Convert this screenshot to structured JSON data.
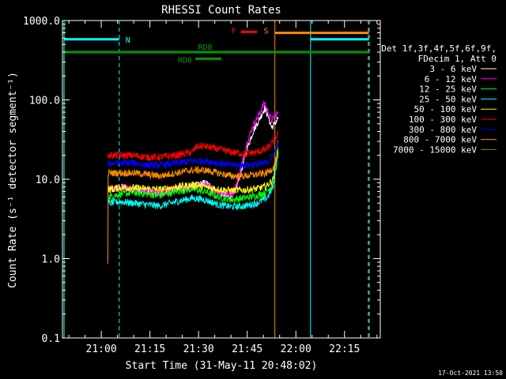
{
  "chart_data": {
    "type": "line",
    "title": "RHESSI Count Rates",
    "xlabel": "Start Time (31-May-11 20:48:02)",
    "ylabel": "Count Rate (s⁻¹ detector segment⁻¹)",
    "ylog": true,
    "ylim": [
      0.1,
      1000
    ],
    "xlim_minutes_after_20_48_02": [
      0,
      98
    ],
    "x_ticks": [
      {
        "label": "21:00",
        "minutes": 11.97
      },
      {
        "label": "21:15",
        "minutes": 26.97
      },
      {
        "label": "21:30",
        "minutes": 41.97
      },
      {
        "label": "21:45",
        "minutes": 56.97
      },
      {
        "label": "22:00",
        "minutes": 71.97
      },
      {
        "label": "22:15",
        "minutes": 86.97
      }
    ],
    "y_ticks": [
      "0.1",
      "1.0",
      "10.0",
      "100.0",
      "1000.0"
    ],
    "legend_title": [
      "Det 1f,3f,4f,5f,6f,9f,",
      "FDecim 1, Att 0"
    ],
    "legend_position": "right",
    "series": [
      {
        "name": "3 - 6 keV",
        "color": "#ffffff",
        "points": [
          [
            14.0,
            7.0
          ],
          [
            18.0,
            8.0
          ],
          [
            22.0,
            7.5
          ],
          [
            26.0,
            7.0
          ],
          [
            30.0,
            6.5
          ],
          [
            35.0,
            7.5
          ],
          [
            40.0,
            8.0
          ],
          [
            41.5,
            8.5
          ],
          [
            44.0,
            9.0
          ],
          [
            48.0,
            7.0
          ],
          [
            51.0,
            6.0
          ],
          [
            53.0,
            6.5
          ],
          [
            55.0,
            12.0
          ],
          [
            57.0,
            25.0
          ],
          [
            59.0,
            42.0
          ],
          [
            61.0,
            60.0
          ],
          [
            62.3,
            78.0
          ],
          [
            63.3,
            65.0
          ],
          [
            64.5,
            45.0
          ],
          [
            65.5,
            50.0
          ],
          [
            66.5,
            60.0
          ]
        ]
      },
      {
        "name": "6 - 12 keV",
        "color": "#ff00ff",
        "points": [
          [
            14.0,
            7.5
          ],
          [
            18.0,
            7.8
          ],
          [
            22.0,
            7.5
          ],
          [
            26.0,
            7.2
          ],
          [
            30.0,
            6.8
          ],
          [
            35.0,
            7.6
          ],
          [
            40.0,
            8.0
          ],
          [
            44.0,
            8.5
          ],
          [
            48.0,
            7.0
          ],
          [
            51.0,
            6.5
          ],
          [
            53.0,
            7.0
          ],
          [
            55.0,
            14.0
          ],
          [
            57.0,
            30.0
          ],
          [
            59.0,
            50.0
          ],
          [
            61.0,
            70.0
          ],
          [
            62.3,
            92.0
          ],
          [
            63.3,
            72.0
          ],
          [
            64.5,
            55.0
          ],
          [
            65.5,
            62.0
          ],
          [
            66.5,
            70.0
          ]
        ]
      },
      {
        "name": "12 - 25 keV",
        "color": "#00ff00",
        "points": [
          [
            14.0,
            6.0
          ],
          [
            18.0,
            6.5
          ],
          [
            22.0,
            6.8
          ],
          [
            26.0,
            6.5
          ],
          [
            30.0,
            6.2
          ],
          [
            35.0,
            7.0
          ],
          [
            40.0,
            7.5
          ],
          [
            44.0,
            7.0
          ],
          [
            48.0,
            6.0
          ],
          [
            52.0,
            5.5
          ],
          [
            56.0,
            5.8
          ],
          [
            60.0,
            6.2
          ],
          [
            63.0,
            7.0
          ],
          [
            65.0,
            9.0
          ],
          [
            66.5,
            25.0
          ]
        ]
      },
      {
        "name": "25 - 50 keV",
        "color": "#00ffff",
        "points": [
          [
            14.0,
            5.0
          ],
          [
            18.0,
            5.2
          ],
          [
            22.0,
            5.0
          ],
          [
            26.0,
            4.8
          ],
          [
            30.0,
            4.6
          ],
          [
            35.0,
            5.2
          ],
          [
            40.0,
            5.8
          ],
          [
            44.0,
            5.5
          ],
          [
            48.0,
            4.8
          ],
          [
            52.0,
            4.5
          ],
          [
            56.0,
            4.6
          ],
          [
            60.0,
            5.0
          ],
          [
            63.0,
            5.8
          ],
          [
            65.0,
            8.0
          ],
          [
            66.5,
            22.0
          ]
        ]
      },
      {
        "name": "50 - 100 keV",
        "color": "#ffff00",
        "points": [
          [
            14.0,
            7.5
          ],
          [
            18.0,
            7.8
          ],
          [
            22.0,
            7.8
          ],
          [
            26.0,
            7.6
          ],
          [
            30.0,
            7.4
          ],
          [
            35.0,
            8.0
          ],
          [
            40.0,
            8.5
          ],
          [
            44.0,
            8.0
          ],
          [
            48.0,
            7.5
          ],
          [
            52.0,
            7.2
          ],
          [
            56.0,
            7.3
          ],
          [
            60.0,
            7.6
          ],
          [
            63.0,
            8.2
          ],
          [
            65.0,
            10.0
          ],
          [
            66.5,
            30.0
          ]
        ]
      },
      {
        "name": "100 - 300 keV",
        "color": "#ff0000",
        "points": [
          [
            14.0,
            20.0
          ],
          [
            18.0,
            20.0
          ],
          [
            22.0,
            20.0
          ],
          [
            26.0,
            19.0
          ],
          [
            30.0,
            19.0
          ],
          [
            35.0,
            20.0
          ],
          [
            40.0,
            22.0
          ],
          [
            41.5,
            26.0
          ],
          [
            44.0,
            26.0
          ],
          [
            48.0,
            24.0
          ],
          [
            52.0,
            22.0
          ],
          [
            56.0,
            21.0
          ],
          [
            60.0,
            22.0
          ],
          [
            63.0,
            24.0
          ],
          [
            65.0,
            30.0
          ],
          [
            66.5,
            38.0
          ]
        ]
      },
      {
        "name": "300 - 800 keV",
        "color": "#0000ff",
        "points": [
          [
            14.0,
            16.0
          ],
          [
            18.0,
            16.0
          ],
          [
            22.0,
            16.0
          ],
          [
            26.0,
            15.0
          ],
          [
            30.0,
            15.0
          ],
          [
            35.0,
            16.0
          ],
          [
            40.0,
            17.0
          ],
          [
            44.0,
            17.0
          ],
          [
            48.0,
            16.0
          ],
          [
            52.0,
            15.0
          ],
          [
            56.0,
            15.0
          ],
          [
            60.0,
            15.5
          ],
          [
            63.0,
            16.0
          ],
          [
            65.0,
            20.0
          ],
          [
            66.5,
            28.0
          ]
        ]
      },
      {
        "name": "800 - 7000 keV",
        "color": "#ff8c00",
        "points": [
          [
            14.0,
            0.8
          ],
          [
            14.1,
            12.0
          ],
          [
            18.0,
            12.0
          ],
          [
            22.0,
            12.0
          ],
          [
            26.0,
            11.5
          ],
          [
            30.0,
            11.0
          ],
          [
            35.0,
            12.0
          ],
          [
            40.0,
            13.0
          ],
          [
            44.0,
            13.0
          ],
          [
            48.0,
            12.0
          ],
          [
            52.0,
            11.0
          ],
          [
            56.0,
            11.0
          ],
          [
            60.0,
            11.5
          ],
          [
            63.0,
            12.0
          ],
          [
            65.0,
            14.0
          ],
          [
            66.5,
            20.0
          ]
        ]
      },
      {
        "name": "7000 - 15000 keV",
        "color": "#a07800",
        "points": []
      }
    ],
    "annotations": [
      {
        "label": "N",
        "color": "#00ffff",
        "x_range": [
          0.5,
          17.5
        ],
        "y": 580
      },
      {
        "label": "RD0",
        "color": "#009900",
        "x_range": [
          0.5,
          94.5
        ],
        "y": 400
      },
      {
        "label": "RD6",
        "color": "#009900",
        "x_range": [
          41.0,
          49.0
        ],
        "y": 330
      },
      {
        "label": "F",
        "color": "#ff0000",
        "x_range": [
          55.0,
          60.0
        ],
        "y": 720
      },
      {
        "label": "S",
        "color": "#ff8c00",
        "x_range": [
          65.5,
          94.5
        ],
        "y": 700
      },
      {
        "label": "",
        "color": "#00ffff",
        "x_range": [
          76.5,
          94.5
        ],
        "y": 580
      }
    ],
    "vertical_lines": [
      {
        "x": 0.5,
        "color": "#00ffff",
        "style": "solid"
      },
      {
        "x": 17.5,
        "color": "#00ffff",
        "style": "dashed"
      },
      {
        "x": 65.5,
        "color": "#ff8c00",
        "style": "solid"
      },
      {
        "x": 76.5,
        "color": "#00ffff",
        "style": "solid"
      },
      {
        "x": 94.3,
        "color": "#ff8c00",
        "style": "dashed"
      },
      {
        "x": 94.6,
        "color": "#00ffff",
        "style": "dashed"
      }
    ]
  },
  "footer": {
    "timestamp": "17-Oct-2021 13:50"
  }
}
